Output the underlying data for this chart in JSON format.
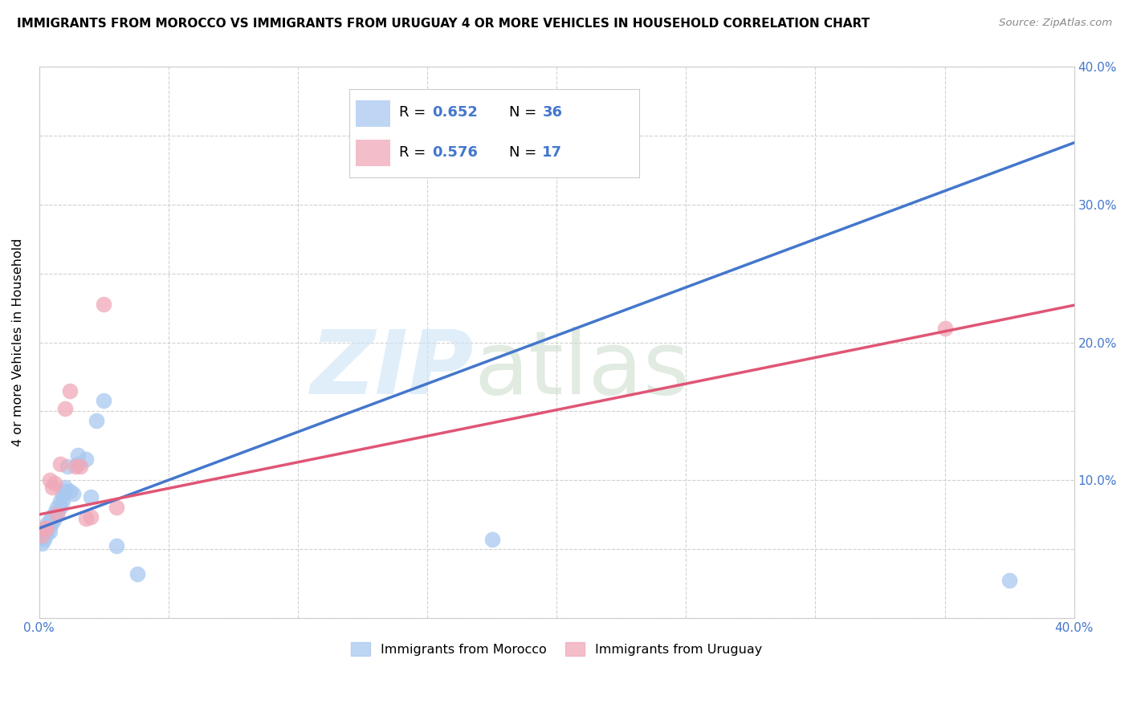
{
  "title": "IMMIGRANTS FROM MOROCCO VS IMMIGRANTS FROM URUGUAY 4 OR MORE VEHICLES IN HOUSEHOLD CORRELATION CHART",
  "source": "Source: ZipAtlas.com",
  "ylabel": "4 or more Vehicles in Household",
  "xlim": [
    0.0,
    0.4
  ],
  "ylim": [
    0.0,
    0.4
  ],
  "xticks": [
    0.0,
    0.05,
    0.1,
    0.15,
    0.2,
    0.25,
    0.3,
    0.35,
    0.4
  ],
  "yticks": [
    0.0,
    0.05,
    0.1,
    0.15,
    0.2,
    0.25,
    0.3,
    0.35,
    0.4
  ],
  "morocco_R": 0.652,
  "morocco_N": 36,
  "uruguay_R": 0.576,
  "uruguay_N": 17,
  "morocco_color": "#a8c8f0",
  "uruguay_color": "#f0a8b8",
  "morocco_line_color": "#4477cc",
  "uruguay_line_color": "#e05575",
  "tick_color": "#4477cc",
  "morocco_x": [
    0.001,
    0.001,
    0.002,
    0.002,
    0.002,
    0.003,
    0.003,
    0.003,
    0.004,
    0.004,
    0.004,
    0.005,
    0.005,
    0.006,
    0.006,
    0.007,
    0.007,
    0.008,
    0.008,
    0.009,
    0.009,
    0.01,
    0.01,
    0.011,
    0.012,
    0.013,
    0.015,
    0.015,
    0.018,
    0.02,
    0.022,
    0.025,
    0.03,
    0.038,
    0.175,
    0.375
  ],
  "morocco_y": [
    0.058,
    0.054,
    0.063,
    0.06,
    0.057,
    0.068,
    0.064,
    0.061,
    0.071,
    0.067,
    0.063,
    0.073,
    0.069,
    0.076,
    0.072,
    0.08,
    0.076,
    0.085,
    0.08,
    0.09,
    0.085,
    0.095,
    0.092,
    0.11,
    0.092,
    0.09,
    0.112,
    0.118,
    0.115,
    0.088,
    0.143,
    0.158,
    0.052,
    0.032,
    0.057,
    0.027
  ],
  "uruguay_x": [
    0.001,
    0.002,
    0.003,
    0.004,
    0.005,
    0.006,
    0.007,
    0.008,
    0.01,
    0.012,
    0.014,
    0.016,
    0.018,
    0.02,
    0.025,
    0.03,
    0.35
  ],
  "uruguay_y": [
    0.06,
    0.065,
    0.065,
    0.1,
    0.095,
    0.098,
    0.075,
    0.112,
    0.152,
    0.165,
    0.11,
    0.11,
    0.072,
    0.073,
    0.228,
    0.08,
    0.21
  ],
  "background_color": "#ffffff",
  "grid_color": "#cccccc",
  "morocco_line_intercept": 0.065,
  "morocco_line_slope": 0.7,
  "uruguay_line_intercept": 0.075,
  "uruguay_line_slope": 0.38
}
